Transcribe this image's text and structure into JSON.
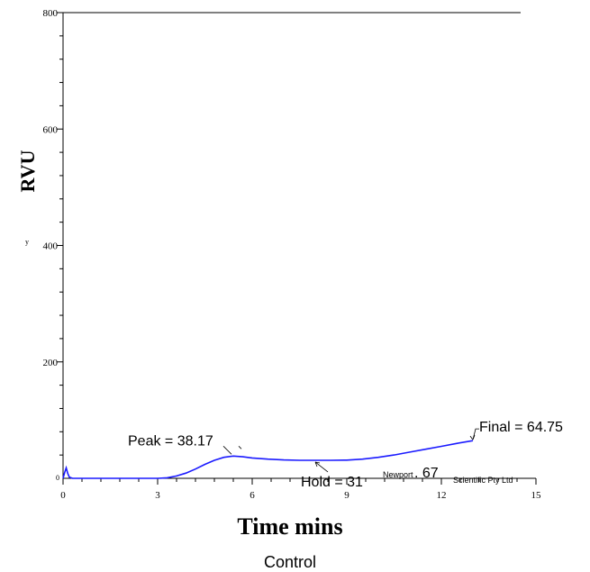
{
  "chart_data": {
    "type": "line",
    "xlabel": "Time mins",
    "ylabel": "RVU",
    "caption": "Control",
    "xlim": [
      0,
      15
    ],
    "ylim": [
      0,
      800
    ],
    "xticks": [
      0,
      3,
      6,
      9,
      12,
      15
    ],
    "yticks": [
      200,
      400,
      600,
      800
    ],
    "y_zero_label": "0",
    "y_side_mark": "y",
    "grid": false,
    "line_color": "#1a1aff",
    "series": [
      {
        "x": [
          0,
          0.05,
          0.1,
          0.15,
          0.2,
          0.3,
          0.5,
          1,
          2,
          3,
          3.3,
          3.6,
          3.9,
          4.2,
          4.5,
          4.8,
          5.1,
          5.4,
          5.7,
          6,
          6.5,
          7,
          7.5,
          8,
          8.5,
          9,
          9.5,
          10,
          10.5,
          11,
          11.5,
          12,
          12.5,
          13
        ],
        "y": [
          0,
          10,
          18,
          8,
          2,
          0,
          0,
          0,
          0,
          0,
          1,
          4,
          9,
          16,
          24,
          31,
          36,
          38.17,
          37,
          35,
          33,
          31.5,
          31,
          31,
          31,
          31.3,
          33,
          36,
          40,
          45,
          50,
          55,
          60,
          64.75
        ]
      }
    ],
    "annotations": {
      "peak": "Peak = 38.17",
      "hold": "Hold = 31",
      "final": "Final = 64.75",
      "watermark_a": "Newport",
      "watermark_b": ". 67",
      "watermark_c": "Scientific Pty Ltd"
    }
  }
}
